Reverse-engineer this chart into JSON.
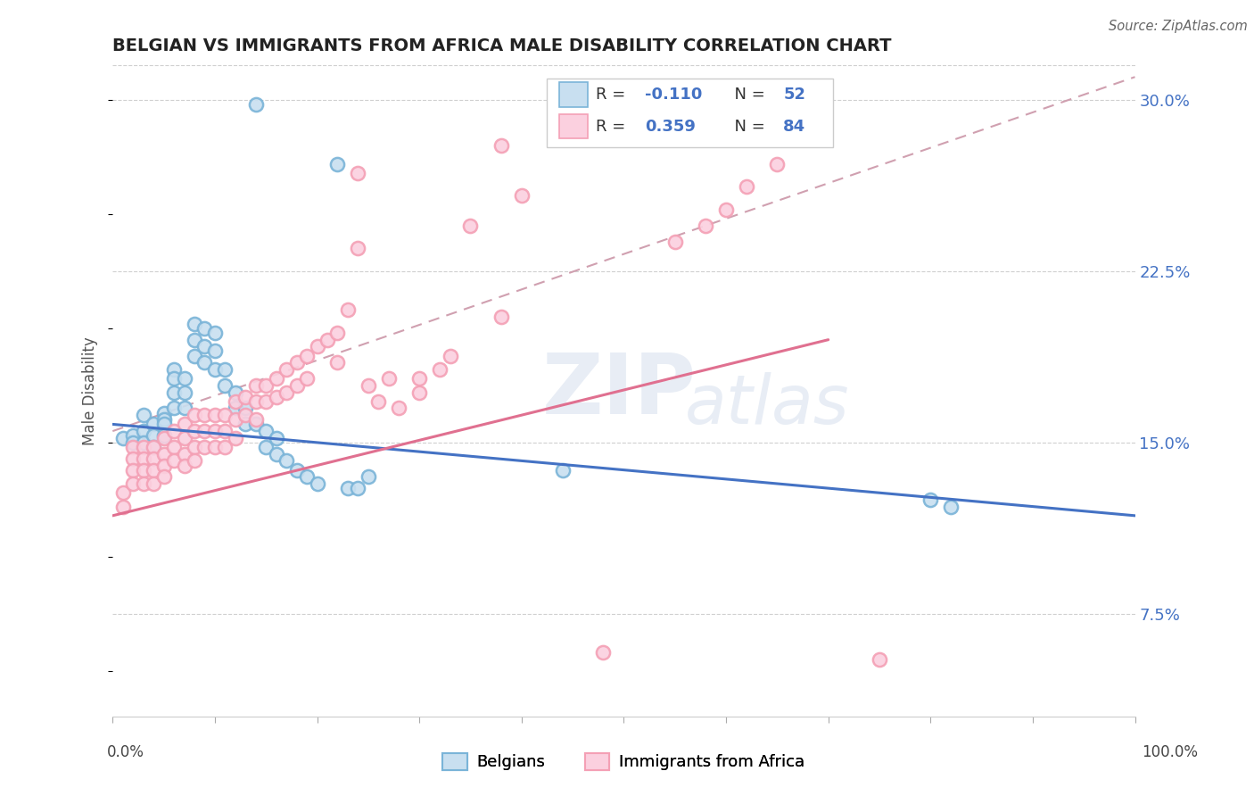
{
  "title": "BELGIAN VS IMMIGRANTS FROM AFRICA MALE DISABILITY CORRELATION CHART",
  "source": "Source: ZipAtlas.com",
  "ylabel": "Male Disability",
  "yticks": [
    "7.5%",
    "15.0%",
    "22.5%",
    "30.0%"
  ],
  "ytick_values": [
    0.075,
    0.15,
    0.225,
    0.3
  ],
  "legend_label1": "Belgians",
  "legend_label2": "Immigrants from Africa",
  "color_blue": "#7ab4d8",
  "color_blue_light": "#c8dff0",
  "color_blue_line": "#4472c4",
  "color_pink": "#f4a0b5",
  "color_pink_light": "#fbd0df",
  "color_pink_line": "#e07090",
  "color_dash": "#d0a0b0",
  "color_r": "#4472c4",
  "color_grid": "#d0d0d0",
  "watermark_color": "#e8edf5",
  "blue_scatter_x": [
    0.14,
    0.22,
    0.01,
    0.02,
    0.02,
    0.03,
    0.03,
    0.03,
    0.04,
    0.04,
    0.04,
    0.05,
    0.05,
    0.05,
    0.05,
    0.06,
    0.06,
    0.06,
    0.06,
    0.07,
    0.07,
    0.07,
    0.08,
    0.08,
    0.08,
    0.09,
    0.09,
    0.09,
    0.1,
    0.1,
    0.1,
    0.11,
    0.11,
    0.12,
    0.12,
    0.13,
    0.13,
    0.14,
    0.15,
    0.15,
    0.16,
    0.16,
    0.17,
    0.18,
    0.19,
    0.2,
    0.23,
    0.24,
    0.25,
    0.44,
    0.8,
    0.82
  ],
  "blue_scatter_y": [
    0.298,
    0.272,
    0.152,
    0.153,
    0.15,
    0.162,
    0.155,
    0.15,
    0.158,
    0.153,
    0.148,
    0.163,
    0.16,
    0.158,
    0.153,
    0.182,
    0.178,
    0.172,
    0.165,
    0.178,
    0.172,
    0.165,
    0.202,
    0.195,
    0.188,
    0.2,
    0.192,
    0.185,
    0.198,
    0.19,
    0.182,
    0.182,
    0.175,
    0.172,
    0.165,
    0.165,
    0.158,
    0.158,
    0.155,
    0.148,
    0.152,
    0.145,
    0.142,
    0.138,
    0.135,
    0.132,
    0.13,
    0.13,
    0.135,
    0.138,
    0.125,
    0.122
  ],
  "pink_scatter_x": [
    0.01,
    0.01,
    0.02,
    0.02,
    0.02,
    0.02,
    0.03,
    0.03,
    0.03,
    0.03,
    0.04,
    0.04,
    0.04,
    0.04,
    0.05,
    0.05,
    0.05,
    0.05,
    0.06,
    0.06,
    0.06,
    0.07,
    0.07,
    0.07,
    0.07,
    0.08,
    0.08,
    0.08,
    0.08,
    0.09,
    0.09,
    0.09,
    0.1,
    0.1,
    0.1,
    0.11,
    0.11,
    0.11,
    0.12,
    0.12,
    0.12,
    0.13,
    0.13,
    0.14,
    0.14,
    0.14,
    0.15,
    0.15,
    0.16,
    0.16,
    0.17,
    0.17,
    0.18,
    0.18,
    0.19,
    0.19,
    0.2,
    0.21,
    0.22,
    0.22,
    0.23,
    0.24,
    0.25,
    0.26,
    0.27,
    0.28,
    0.3,
    0.3,
    0.32,
    0.33,
    0.35,
    0.38,
    0.38,
    0.4,
    0.24,
    0.48,
    0.55,
    0.58,
    0.6,
    0.62,
    0.65,
    0.75
  ],
  "pink_scatter_y": [
    0.128,
    0.122,
    0.148,
    0.143,
    0.138,
    0.132,
    0.148,
    0.143,
    0.138,
    0.132,
    0.148,
    0.143,
    0.138,
    0.132,
    0.152,
    0.145,
    0.14,
    0.135,
    0.155,
    0.148,
    0.142,
    0.158,
    0.152,
    0.145,
    0.14,
    0.162,
    0.155,
    0.148,
    0.142,
    0.162,
    0.155,
    0.148,
    0.162,
    0.155,
    0.148,
    0.162,
    0.155,
    0.148,
    0.168,
    0.16,
    0.152,
    0.17,
    0.162,
    0.175,
    0.168,
    0.16,
    0.175,
    0.168,
    0.178,
    0.17,
    0.182,
    0.172,
    0.185,
    0.175,
    0.188,
    0.178,
    0.192,
    0.195,
    0.198,
    0.185,
    0.208,
    0.235,
    0.175,
    0.168,
    0.178,
    0.165,
    0.172,
    0.178,
    0.182,
    0.188,
    0.245,
    0.205,
    0.28,
    0.258,
    0.268,
    0.058,
    0.238,
    0.245,
    0.252,
    0.262,
    0.272,
    0.055
  ],
  "blue_line_x": [
    0.0,
    1.0
  ],
  "blue_line_y": [
    0.158,
    0.118
  ],
  "pink_line_x": [
    0.0,
    0.7
  ],
  "pink_line_y": [
    0.118,
    0.195
  ],
  "dash_line_x": [
    0.0,
    1.0
  ],
  "dash_line_y": [
    0.155,
    0.31
  ],
  "xlim": [
    0.0,
    1.0
  ],
  "ylim": [
    0.03,
    0.315
  ],
  "background_color": "#ffffff"
}
